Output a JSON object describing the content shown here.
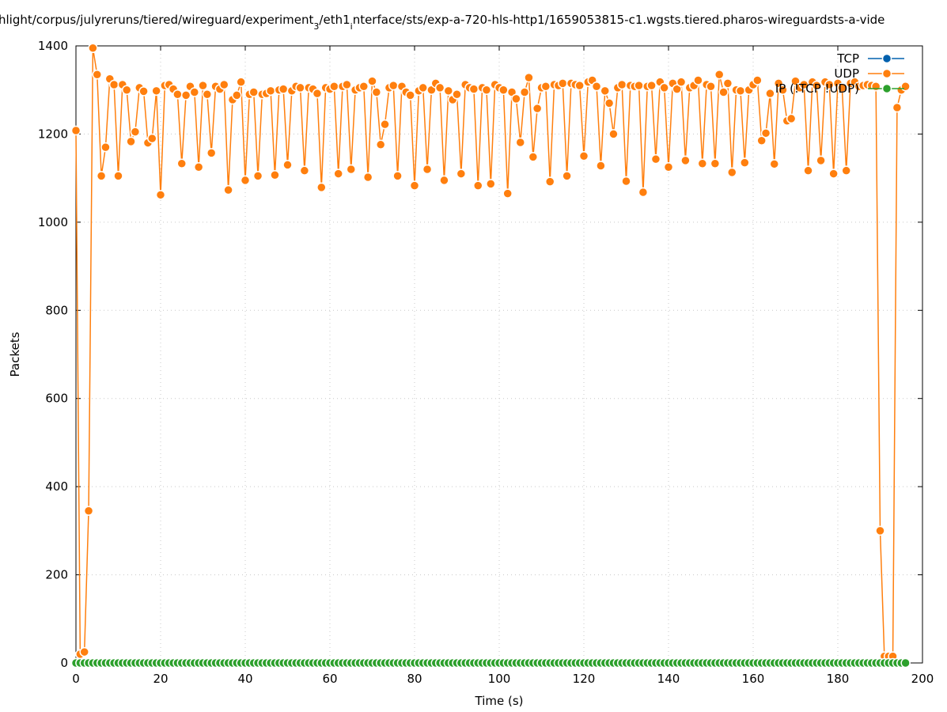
{
  "chart_data": {
    "type": "line",
    "title_parts": [
      "hlight/corpus/julyreruns/tiered/wireguard/experiment",
      "3",
      "/eth1",
      "i",
      "nterface/sts/exp-a-720-hls-http1/1659053815-c1.wgsts.tiered.pharos-wireguardsts-a-vide"
    ],
    "x_label": "Time (s)",
    "y_label": "Packets",
    "xlim": [
      0,
      200
    ],
    "xticks": [
      0,
      20,
      40,
      60,
      80,
      100,
      120,
      140,
      160,
      180,
      200
    ],
    "ylim": [
      0,
      1400
    ],
    "yticks": [
      0,
      200,
      400,
      600,
      800,
      1000,
      1200,
      1400
    ],
    "grid": true,
    "legend": "top-right",
    "x": [
      0,
      1,
      2,
      3,
      4,
      5,
      6,
      7,
      8,
      9,
      10,
      11,
      12,
      13,
      14,
      15,
      16,
      17,
      18,
      19,
      20,
      21,
      22,
      23,
      24,
      25,
      26,
      27,
      28,
      29,
      30,
      31,
      32,
      33,
      34,
      35,
      36,
      37,
      38,
      39,
      40,
      41,
      42,
      43,
      44,
      45,
      46,
      47,
      48,
      49,
      50,
      51,
      52,
      53,
      54,
      55,
      56,
      57,
      58,
      59,
      60,
      61,
      62,
      63,
      64,
      65,
      66,
      67,
      68,
      69,
      70,
      71,
      72,
      73,
      74,
      75,
      76,
      77,
      78,
      79,
      80,
      81,
      82,
      83,
      84,
      85,
      86,
      87,
      88,
      89,
      90,
      91,
      92,
      93,
      94,
      95,
      96,
      97,
      98,
      99,
      100,
      101,
      102,
      103,
      104,
      105,
      106,
      107,
      108,
      109,
      110,
      111,
      112,
      113,
      114,
      115,
      116,
      117,
      118,
      119,
      120,
      121,
      122,
      123,
      124,
      125,
      126,
      127,
      128,
      129,
      130,
      131,
      132,
      133,
      134,
      135,
      136,
      137,
      138,
      139,
      140,
      141,
      142,
      143,
      144,
      145,
      146,
      147,
      148,
      149,
      150,
      151,
      152,
      153,
      154,
      155,
      156,
      157,
      158,
      159,
      160,
      161,
      162,
      163,
      164,
      165,
      166,
      167,
      168,
      169,
      170,
      171,
      172,
      173,
      174,
      175,
      176,
      177,
      178,
      179,
      180,
      181,
      182,
      183,
      184,
      185,
      186,
      187,
      188,
      189,
      190,
      191,
      192,
      193,
      194,
      195,
      196
    ],
    "series": [
      {
        "name": "TCP",
        "color": "#0060ad",
        "values": [
          0,
          0,
          0,
          0,
          0,
          0,
          0,
          0,
          0,
          0,
          0,
          0,
          0,
          0,
          0,
          0,
          0,
          0,
          0,
          0,
          0,
          0,
          0,
          0,
          0,
          0,
          0,
          0,
          0,
          0,
          0,
          0,
          0,
          0,
          0,
          0,
          0,
          0,
          0,
          0,
          0,
          0,
          0,
          0,
          0,
          0,
          0,
          0,
          0,
          0,
          0,
          0,
          0,
          0,
          0,
          0,
          0,
          0,
          0,
          0,
          0,
          0,
          0,
          0,
          0,
          0,
          0,
          0,
          0,
          0,
          0,
          0,
          0,
          0,
          0,
          0,
          0,
          0,
          0,
          0,
          0,
          0,
          0,
          0,
          0,
          0,
          0,
          0,
          0,
          0,
          0,
          0,
          0,
          0,
          0,
          0,
          0,
          0,
          0,
          0,
          0,
          0,
          0,
          0,
          0,
          0,
          0,
          0,
          0,
          0,
          0,
          0,
          0,
          0,
          0,
          0,
          0,
          0,
          0,
          0,
          0,
          0,
          0,
          0,
          0,
          0,
          0,
          0,
          0,
          0,
          0,
          0,
          0,
          0,
          0,
          0,
          0,
          0,
          0,
          0,
          0,
          0,
          0,
          0,
          0,
          0,
          0,
          0,
          0,
          0,
          0,
          0,
          0,
          0,
          0,
          0,
          0,
          0,
          0,
          0,
          0,
          0,
          0,
          0,
          0,
          0,
          0,
          0,
          0,
          0,
          0,
          0,
          0,
          0,
          0,
          0,
          0,
          0,
          0,
          0,
          0,
          0,
          0,
          0,
          0,
          0,
          0,
          0,
          0,
          0,
          0,
          0,
          0,
          0,
          0,
          0,
          0
        ]
      },
      {
        "name": "UDP",
        "color": "#ff7f0e",
        "values": [
          1208,
          20,
          25,
          345,
          1395,
          1335,
          1105,
          1170,
          1325,
          1312,
          1105,
          1312,
          1300,
          1183,
          1205,
          1305,
          1297,
          1180,
          1190,
          1298,
          1062,
          1310,
          1312,
          1302,
          1290,
          1133,
          1288,
          1308,
          1295,
          1125,
          1310,
          1290,
          1157,
          1308,
          1302,
          1312,
          1073,
          1278,
          1288,
          1318,
          1095,
          1290,
          1295,
          1105,
          1290,
          1292,
          1298,
          1107,
          1300,
          1302,
          1130,
          1298,
          1308,
          1305,
          1117,
          1305,
          1302,
          1292,
          1079,
          1305,
          1302,
          1308,
          1110,
          1308,
          1312,
          1120,
          1300,
          1305,
          1308,
          1102,
          1320,
          1295,
          1176,
          1222,
          1305,
          1310,
          1105,
          1308,
          1295,
          1288,
          1083,
          1298,
          1305,
          1120,
          1300,
          1315,
          1305,
          1095,
          1298,
          1278,
          1290,
          1110,
          1312,
          1305,
          1302,
          1083,
          1305,
          1300,
          1087,
          1312,
          1305,
          1300,
          1065,
          1295,
          1280,
          1181,
          1295,
          1328,
          1148,
          1258,
          1305,
          1308,
          1092,
          1312,
          1310,
          1315,
          1105,
          1315,
          1312,
          1310,
          1150,
          1318,
          1322,
          1308,
          1128,
          1298,
          1270,
          1200,
          1305,
          1312,
          1093,
          1310,
          1308,
          1310,
          1068,
          1308,
          1310,
          1143,
          1318,
          1305,
          1125,
          1315,
          1302,
          1318,
          1140,
          1305,
          1310,
          1322,
          1133,
          1312,
          1308,
          1133,
          1335,
          1295,
          1315,
          1113,
          1300,
          1298,
          1135,
          1300,
          1312,
          1322,
          1185,
          1202,
          1292,
          1132,
          1315,
          1300,
          1230,
          1235,
          1320,
          1305,
          1312,
          1117,
          1318,
          1310,
          1140,
          1318,
          1312,
          1110,
          1315,
          1305,
          1117,
          1315,
          1318,
          1308,
          1310,
          1312,
          1310,
          1308,
          300,
          15,
          15,
          15,
          1260,
          1300,
          1308
        ]
      },
      {
        "name": "IP (!TCP !UDP)",
        "color": "#2ca02c",
        "values": [
          0,
          0,
          0,
          0,
          0,
          0,
          0,
          0,
          0,
          0,
          0,
          0,
          0,
          0,
          0,
          0,
          0,
          0,
          0,
          0,
          0,
          0,
          0,
          0,
          0,
          0,
          0,
          0,
          0,
          0,
          0,
          0,
          0,
          0,
          0,
          0,
          0,
          0,
          0,
          0,
          0,
          0,
          0,
          0,
          0,
          0,
          0,
          0,
          0,
          0,
          0,
          0,
          0,
          0,
          0,
          0,
          0,
          0,
          0,
          0,
          0,
          0,
          0,
          0,
          0,
          0,
          0,
          0,
          0,
          0,
          0,
          0,
          0,
          0,
          0,
          0,
          0,
          0,
          0,
          0,
          0,
          0,
          0,
          0,
          0,
          0,
          0,
          0,
          0,
          0,
          0,
          0,
          0,
          0,
          0,
          0,
          0,
          0,
          0,
          0,
          0,
          0,
          0,
          0,
          0,
          0,
          0,
          0,
          0,
          0,
          0,
          0,
          0,
          0,
          0,
          0,
          0,
          0,
          0,
          0,
          0,
          0,
          0,
          0,
          0,
          0,
          0,
          0,
          0,
          0,
          0,
          0,
          0,
          0,
          0,
          0,
          0,
          0,
          0,
          0,
          0,
          0,
          0,
          0,
          0,
          0,
          0,
          0,
          0,
          0,
          0,
          0,
          0,
          0,
          0,
          0,
          0,
          0,
          0,
          0,
          0,
          0,
          0,
          0,
          0,
          0,
          0,
          0,
          0,
          0,
          0,
          0,
          0,
          0,
          0,
          0,
          0,
          0,
          0,
          0,
          0,
          0,
          0,
          0,
          0,
          0,
          0,
          0,
          0,
          0,
          0,
          0,
          0,
          0,
          0,
          0,
          0
        ]
      }
    ]
  }
}
